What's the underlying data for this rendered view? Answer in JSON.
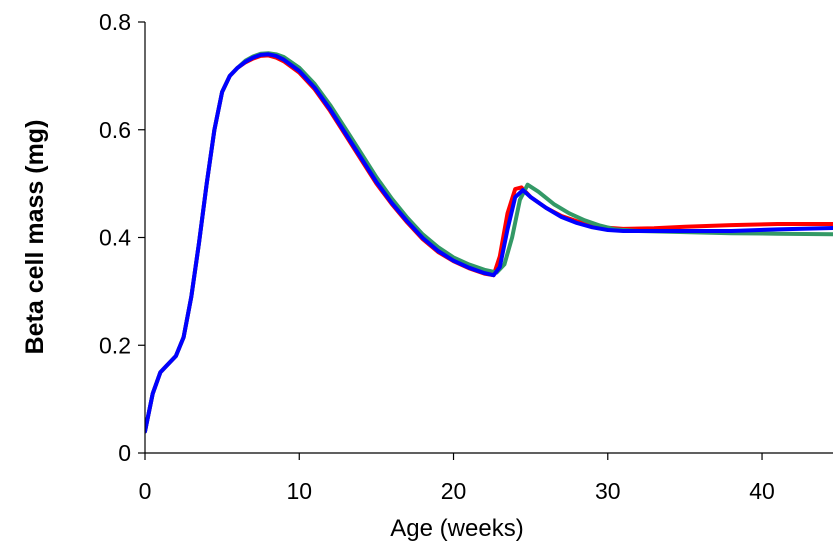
{
  "chart_data": {
    "type": "line",
    "title": "",
    "xlabel": "Age (weeks)",
    "ylabel": "Beta cell mass (mg)",
    "xlim": [
      0,
      45
    ],
    "ylim": [
      0,
      0.8
    ],
    "x_ticks": [
      "0",
      "10",
      "20",
      "30",
      "40"
    ],
    "y_ticks": [
      "0",
      "0.2",
      "0.4",
      "0.6",
      "0.8"
    ],
    "grid": false,
    "legend": "none",
    "series": [
      {
        "color": "#ff0000",
        "x": [
          0,
          0.5,
          1,
          1.5,
          2,
          2.5,
          3,
          3.5,
          4,
          4.5,
          5,
          5.5,
          6,
          6.5,
          7,
          7.5,
          8,
          8.5,
          9,
          10,
          11,
          12,
          13,
          14,
          15,
          16,
          17,
          18,
          19,
          20,
          21,
          22,
          22.6,
          23,
          23.5,
          24,
          24.4,
          25,
          26,
          27,
          28,
          29,
          30,
          31,
          33,
          35,
          38,
          41,
          45
        ],
        "y": [
          0.04,
          0.11,
          0.15,
          0.165,
          0.18,
          0.215,
          0.29,
          0.39,
          0.5,
          0.6,
          0.67,
          0.7,
          0.715,
          0.725,
          0.732,
          0.737,
          0.738,
          0.734,
          0.727,
          0.706,
          0.675,
          0.635,
          0.59,
          0.545,
          0.5,
          0.462,
          0.428,
          0.397,
          0.373,
          0.356,
          0.343,
          0.333,
          0.33,
          0.365,
          0.445,
          0.49,
          0.493,
          0.475,
          0.455,
          0.44,
          0.43,
          0.422,
          0.418,
          0.416,
          0.417,
          0.42,
          0.423,
          0.425,
          0.425
        ]
      },
      {
        "color": "#339966",
        "x": [
          0,
          0.5,
          1,
          1.5,
          2,
          2.5,
          3,
          3.5,
          4,
          4.5,
          5,
          5.5,
          6,
          6.5,
          7,
          7.5,
          8,
          8.5,
          9,
          10,
          11,
          12,
          13,
          14,
          15,
          16,
          17,
          18,
          19,
          20,
          21,
          22,
          22.8,
          23.3,
          23.8,
          24.3,
          24.8,
          25.5,
          26.5,
          27.5,
          28.5,
          29.5,
          30.5,
          32,
          35,
          38,
          41,
          45
        ],
        "y": [
          0.04,
          0.11,
          0.15,
          0.165,
          0.18,
          0.215,
          0.29,
          0.39,
          0.5,
          0.6,
          0.67,
          0.7,
          0.715,
          0.728,
          0.736,
          0.741,
          0.742,
          0.74,
          0.735,
          0.715,
          0.685,
          0.646,
          0.602,
          0.557,
          0.512,
          0.472,
          0.437,
          0.406,
          0.382,
          0.363,
          0.35,
          0.34,
          0.335,
          0.35,
          0.4,
          0.47,
          0.498,
          0.485,
          0.462,
          0.445,
          0.432,
          0.422,
          0.415,
          0.412,
          0.41,
          0.408,
          0.407,
          0.406
        ]
      },
      {
        "color": "#0000ff",
        "x": [
          0,
          0.5,
          1,
          1.5,
          2,
          2.5,
          3,
          3.5,
          4,
          4.5,
          5,
          5.5,
          6,
          6.5,
          7,
          7.5,
          8,
          8.5,
          9,
          10,
          11,
          12,
          13,
          14,
          15,
          16,
          17,
          18,
          19,
          20,
          21,
          22,
          22.6,
          23,
          23.5,
          24,
          24.5,
          25,
          26,
          27,
          28,
          29,
          30,
          31,
          33,
          35,
          38,
          41,
          45
        ],
        "y": [
          0.04,
          0.11,
          0.15,
          0.165,
          0.18,
          0.215,
          0.29,
          0.39,
          0.5,
          0.6,
          0.67,
          0.7,
          0.715,
          0.726,
          0.734,
          0.739,
          0.74,
          0.737,
          0.73,
          0.709,
          0.678,
          0.638,
          0.593,
          0.548,
          0.503,
          0.464,
          0.43,
          0.399,
          0.375,
          0.357,
          0.344,
          0.334,
          0.33,
          0.345,
          0.415,
          0.475,
          0.488,
          0.475,
          0.455,
          0.438,
          0.427,
          0.419,
          0.414,
          0.412,
          0.412,
          0.412,
          0.412,
          0.415,
          0.418
        ]
      }
    ]
  }
}
